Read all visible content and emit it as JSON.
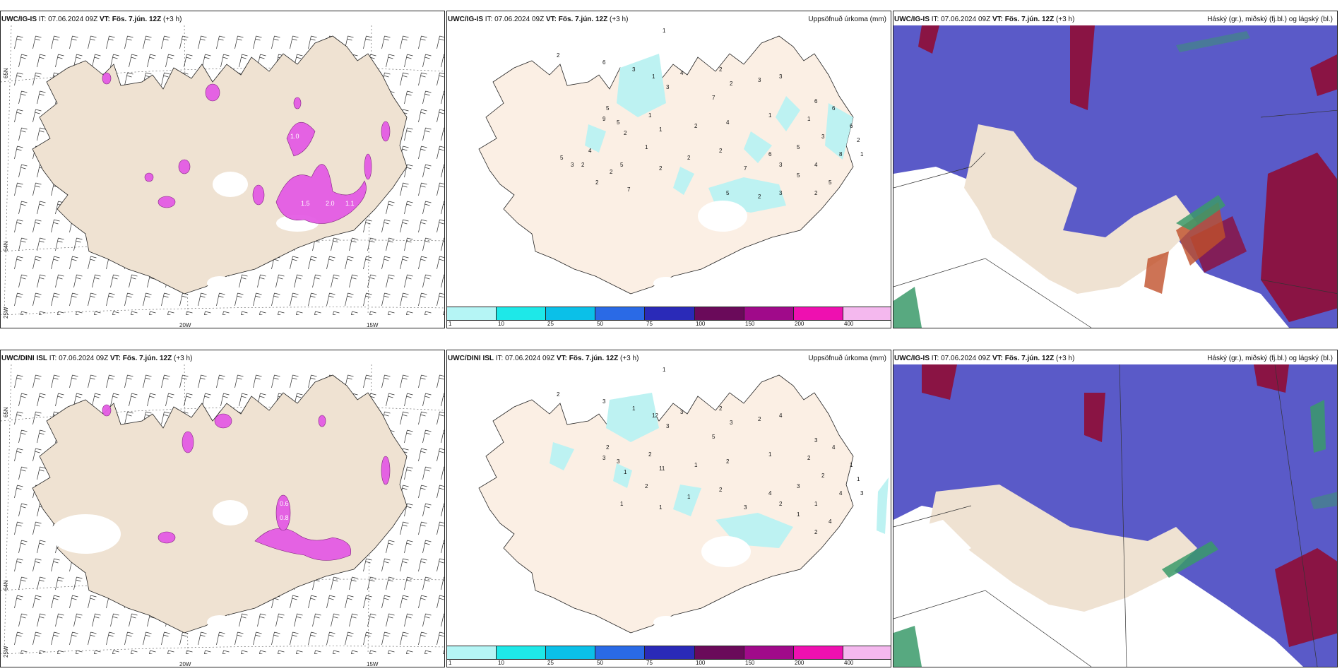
{
  "rows": [
    {
      "model": "UWC/IG-IS",
      "it": "IT: 07.06.2024 09Z",
      "vt": "VT: Fös. 7.jún. 12Z",
      "lead": "(+3 h)",
      "precip_numbers": [
        "1",
        "2",
        "6",
        "3",
        "1",
        "3",
        "4",
        "2",
        "2",
        "3",
        "3",
        "7",
        "5",
        "9",
        "5",
        "1",
        "1",
        "2",
        "4",
        "1",
        "6",
        "1",
        "6",
        "6",
        "2",
        "1",
        "2",
        "1",
        "2",
        "2",
        "6",
        "5",
        "3",
        "8",
        "7",
        "3",
        "5",
        "4",
        "5",
        "2",
        "2",
        "5",
        "2",
        "2",
        "2",
        "3",
        "5",
        "4",
        "7",
        "5",
        "2",
        "3"
      ]
    },
    {
      "model": "UWC/DINI ISL",
      "it": "IT: 07.06.2024 09Z",
      "vt": "VT: Fös. 7.jún. 12Z",
      "lead": "(+3 h)",
      "precip_numbers": [
        "1",
        "2",
        "3",
        "1",
        "12",
        "3",
        "3",
        "2",
        "3",
        "2",
        "4",
        "5",
        "2",
        "3",
        "3",
        "2",
        "11",
        "1",
        "2",
        "1",
        "3",
        "2",
        "4",
        "1",
        "1",
        "3",
        "1",
        "2",
        "1",
        "2",
        "4",
        "3",
        "2",
        "4",
        "3",
        "2",
        "1",
        "1",
        "4",
        "2",
        "1",
        "1"
      ]
    }
  ],
  "cloud_title": "Háský (gr.), miðský (fj.bl.) og lágský (bl.)",
  "precip_title": "Uppsöfnuð úrkoma (mm)",
  "wind_labels": [
    "1.0",
    "1.5",
    "2.0",
    "1.1",
    "0.6",
    "0.8"
  ],
  "lat_labels": {
    "n65": "65N",
    "n64": "64N",
    "w25": "25W"
  },
  "lon_labels": {
    "w20": "20W",
    "w15": "15W"
  },
  "colorbar": {
    "ticks": [
      "1",
      "10",
      "25",
      "50",
      "75",
      "100",
      "150",
      "200",
      "400"
    ],
    "colors": [
      "#b5f5f5",
      "#1ee8e8",
      "#0bc0e8",
      "#2a6ae6",
      "#2a2ab8",
      "#6a0a5a",
      "#a00a8a",
      "#ee10b0",
      "#f4b8ee"
    ]
  },
  "colors": {
    "land": "#efe2d2",
    "precip_land": "#fbefe4",
    "precip_area": "#bdf2f2",
    "magenta": "#e45ce4",
    "low_cloud": "#5a5ac8",
    "mid_cloud": "#8a1444",
    "high_cloud": "#3a9a6a"
  }
}
